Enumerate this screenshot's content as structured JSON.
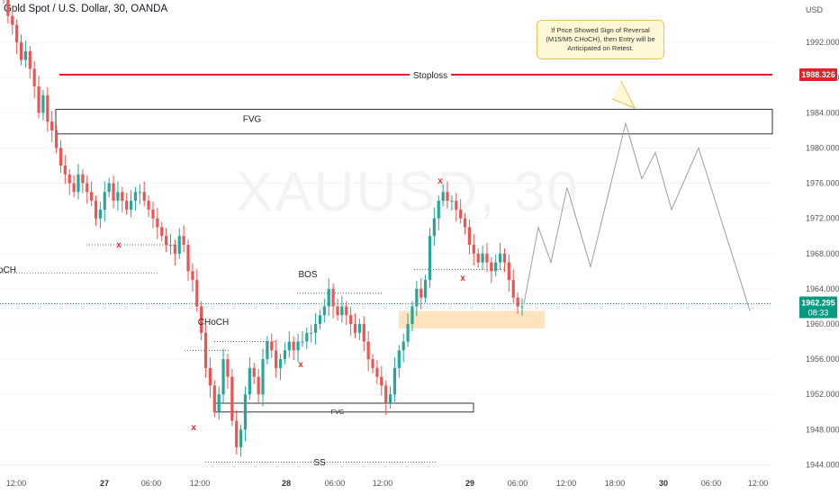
{
  "header": {
    "title": "Gold Spot / U.S. Dollar, 30, OANDA"
  },
  "watermark": {
    "symbol": "XAUUSD, 30"
  },
  "currency": "USD",
  "annotations": {
    "stoploss": "Stoploss",
    "fvg_top": "FVG",
    "fvg_bottom": "FVG",
    "bos": "BOS",
    "choch": "CHoCH",
    "choch_left": "oCH",
    "ss": "SS",
    "x": "x",
    "callout": "If Price Showed Sign of Reversal (M15/M5 CHoCH), then Entry will be Anticipated on Retest."
  },
  "price_tags": {
    "stoploss": "1988.326",
    "current": "1962.295",
    "countdown": "08:33"
  },
  "colors": {
    "bull": "#26a69a",
    "bear": "#ef5350",
    "stoploss": "#e0202a",
    "current": "#089981",
    "entry_zone": "#fde3be"
  },
  "chart_data": {
    "type": "candlestick",
    "title": "Gold Spot / U.S. Dollar, 30, OANDA",
    "y_unit": "USD",
    "ylim": [
      1942,
      1996
    ],
    "yticks": [
      1944,
      1948,
      1952,
      1956,
      1960,
      1964,
      1968,
      1972,
      1976,
      1980,
      1984,
      1988,
      1992
    ],
    "xticks": [
      "12:00",
      "27",
      "06:00",
      "12:00",
      "28",
      "06:00",
      "12:00",
      "29",
      "06:00",
      "12:00",
      "18:00",
      "30",
      "06:00",
      "12:00"
    ],
    "levels": {
      "stoploss": 1988.326,
      "fvg_upper_top": 1984.4,
      "fvg_upper_bottom": 1981.6,
      "current_price": 1962.295,
      "entry_zone": [
        1959.5,
        1961.5
      ],
      "fvg_lower_top": 1951.0,
      "fvg_lower_bottom": 1950.0
    },
    "close_path": [
      1997,
      1995,
      1994,
      1992,
      1990,
      1991,
      1989,
      1987,
      1984,
      1986,
      1983,
      1982,
      1980,
      1978,
      1977,
      1976,
      1975,
      1977,
      1976,
      1975,
      1974,
      1972,
      1973,
      1975,
      1976,
      1974,
      1975,
      1974,
      1973,
      1974,
      1975,
      1975,
      1974,
      1973,
      1972,
      1971,
      1970,
      1969,
      1969,
      1968,
      1970,
      1969,
      1966,
      1965,
      1962,
      1959,
      1955,
      1953,
      1950,
      1952,
      1956,
      1954,
      1949,
      1946,
      1948,
      1952,
      1955,
      1954,
      1952,
      1956,
      1958,
      1957,
      1955,
      1956,
      1957,
      1958,
      1957,
      1958,
      1958,
      1959,
      1959,
      1960,
      1961,
      1962,
      1964,
      1962,
      1961,
      1962,
      1961,
      1960,
      1959,
      1960,
      1958,
      1956,
      1955,
      1954,
      1953,
      1951,
      1952,
      1955,
      1957,
      1958,
      1960,
      1962,
      1964,
      1963,
      1965,
      1970,
      1972,
      1974,
      1975,
      1974,
      1974,
      1973,
      1972,
      1971,
      1969,
      1968,
      1967,
      1968,
      1967,
      1966,
      1967,
      1968,
      1967,
      1965,
      1963,
      1962,
      1962
    ],
    "projection": [
      1962.3,
      1971,
      1967,
      1975.5,
      1966.5,
      1982.8,
      1976.5,
      1979.5,
      1973,
      1980,
      1961.5
    ],
    "markers": [
      "BOS",
      "CHoCH",
      "FVG",
      "FVG",
      "SS",
      "Stoploss"
    ]
  }
}
